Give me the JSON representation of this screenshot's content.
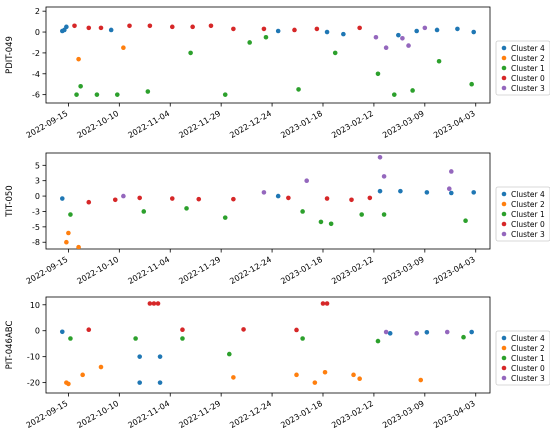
{
  "chart_data": [
    {
      "type": "scatter",
      "ylabel": "PDIT-049",
      "ylim": [
        -6.8,
        2.4
      ],
      "yticks": [
        2,
        0,
        -2,
        -4,
        -6
      ],
      "xlim": [
        "2022-09-04",
        "2023-04-10"
      ],
      "xticks": [
        "2022-09-15",
        "2022-10-10",
        "2022-11-04",
        "2022-11-29",
        "2022-12-24",
        "2023-01-18",
        "2023-02-12",
        "2023-03-09",
        "2023-04-03"
      ],
      "grid": false,
      "legend": "right",
      "series": [
        {
          "name": "Cluster 4",
          "color": "#1f77b4",
          "points": [
            [
              "2022-09-12",
              0.1
            ],
            [
              "2022-09-13",
              0.2
            ],
            [
              "2022-09-14",
              0.5
            ],
            [
              "2022-10-06",
              0.2
            ],
            [
              "2022-12-27",
              0.1
            ],
            [
              "2023-01-20",
              0.0
            ],
            [
              "2023-01-28",
              -0.2
            ],
            [
              "2023-02-24",
              -0.3
            ],
            [
              "2023-03-05",
              0.1
            ],
            [
              "2023-03-15",
              0.2
            ],
            [
              "2023-03-25",
              0.3
            ],
            [
              "2023-04-02",
              0.0
            ]
          ]
        },
        {
          "name": "Cluster 2",
          "color": "#ff7f0e",
          "points": [
            [
              "2022-09-20",
              -2.6
            ],
            [
              "2022-10-12",
              -1.5
            ]
          ]
        },
        {
          "name": "Cluster 1",
          "color": "#2ca02c",
          "points": [
            [
              "2022-09-19",
              -6.0
            ],
            [
              "2022-09-21",
              -5.2
            ],
            [
              "2022-09-29",
              -6.0
            ],
            [
              "2022-10-09",
              -6.0
            ],
            [
              "2022-10-24",
              -5.7
            ],
            [
              "2022-11-14",
              -2.0
            ],
            [
              "2022-12-01",
              -6.0
            ],
            [
              "2022-12-13",
              -1.0
            ],
            [
              "2022-12-21",
              -0.5
            ],
            [
              "2023-01-06",
              -5.5
            ],
            [
              "2023-01-24",
              -2.0
            ],
            [
              "2023-02-14",
              -4.0
            ],
            [
              "2023-02-22",
              -6.0
            ],
            [
              "2023-03-03",
              -5.6
            ],
            [
              "2023-03-16",
              -2.8
            ],
            [
              "2023-04-01",
              -5.0
            ]
          ]
        },
        {
          "name": "Cluster 0",
          "color": "#d62728",
          "points": [
            [
              "2022-09-18",
              0.6
            ],
            [
              "2022-09-25",
              0.4
            ],
            [
              "2022-10-01",
              0.4
            ],
            [
              "2022-10-15",
              0.6
            ],
            [
              "2022-10-25",
              0.6
            ],
            [
              "2022-11-05",
              0.5
            ],
            [
              "2022-11-15",
              0.5
            ],
            [
              "2022-11-24",
              0.6
            ],
            [
              "2022-12-05",
              0.3
            ],
            [
              "2022-12-20",
              0.3
            ],
            [
              "2023-01-04",
              0.2
            ],
            [
              "2023-01-15",
              0.3
            ],
            [
              "2023-02-05",
              0.4
            ]
          ]
        },
        {
          "name": "Cluster 3",
          "color": "#9467bd",
          "points": [
            [
              "2023-02-13",
              -0.5
            ],
            [
              "2023-02-18",
              -1.5
            ],
            [
              "2023-02-26",
              -0.6
            ],
            [
              "2023-03-01",
              -1.3
            ],
            [
              "2023-03-09",
              0.4
            ]
          ]
        }
      ]
    },
    {
      "type": "scatter",
      "ylabel": "TIT-050",
      "ylim": [
        -8.6,
        7.0
      ],
      "yticks": [
        5.0,
        2.5,
        0.0,
        -2.5,
        -5.0,
        -7.5
      ],
      "xlim": [
        "2022-09-04",
        "2023-04-10"
      ],
      "xticks": [
        "2022-09-15",
        "2022-10-10",
        "2022-11-04",
        "2022-11-29",
        "2022-12-24",
        "2023-01-18",
        "2023-02-12",
        "2023-03-09",
        "2023-04-03"
      ],
      "grid": false,
      "legend": "right",
      "series": [
        {
          "name": "Cluster 4",
          "color": "#1f77b4",
          "points": [
            [
              "2022-09-12",
              -0.4
            ],
            [
              "2022-12-27",
              0.0
            ],
            [
              "2023-02-15",
              0.8
            ],
            [
              "2023-02-25",
              0.8
            ],
            [
              "2023-03-10",
              0.6
            ],
            [
              "2023-03-22",
              0.5
            ],
            [
              "2023-04-02",
              0.6
            ]
          ]
        },
        {
          "name": "Cluster 2",
          "color": "#ff7f0e",
          "points": [
            [
              "2022-09-14",
              -7.5
            ],
            [
              "2022-09-15",
              -6.0
            ],
            [
              "2022-09-20",
              -8.3
            ]
          ]
        },
        {
          "name": "Cluster 1",
          "color": "#2ca02c",
          "points": [
            [
              "2022-09-16",
              -3.0
            ],
            [
              "2022-10-22",
              -2.5
            ],
            [
              "2022-11-12",
              -2.0
            ],
            [
              "2022-12-01",
              -3.5
            ],
            [
              "2023-01-08",
              -2.5
            ],
            [
              "2023-01-17",
              -4.2
            ],
            [
              "2023-01-22",
              -4.5
            ],
            [
              "2023-02-06",
              -3.0
            ],
            [
              "2023-02-17",
              -3.0
            ],
            [
              "2023-03-29",
              -4.0
            ]
          ]
        },
        {
          "name": "Cluster 0",
          "color": "#d62728",
          "points": [
            [
              "2022-09-25",
              -1.0
            ],
            [
              "2022-10-08",
              -0.6
            ],
            [
              "2022-10-20",
              -0.3
            ],
            [
              "2022-11-05",
              -0.4
            ],
            [
              "2022-11-18",
              -0.5
            ],
            [
              "2022-12-05",
              -0.5
            ],
            [
              "2023-01-01",
              -0.3
            ],
            [
              "2023-01-20",
              -0.4
            ],
            [
              "2023-02-01",
              -0.6
            ],
            [
              "2023-02-10",
              -0.3
            ]
          ]
        },
        {
          "name": "Cluster 3",
          "color": "#9467bd",
          "points": [
            [
              "2022-10-12",
              0.0
            ],
            [
              "2022-12-20",
              0.6
            ],
            [
              "2023-01-10",
              2.5
            ],
            [
              "2023-02-15",
              6.3
            ],
            [
              "2023-02-17",
              3.2
            ],
            [
              "2023-03-21",
              1.2
            ],
            [
              "2023-03-22",
              4.0
            ]
          ]
        }
      ]
    },
    {
      "type": "scatter",
      "ylabel": "PIT-046ABC",
      "ylim": [
        -24,
        13
      ],
      "yticks": [
        10,
        0,
        -10,
        -20
      ],
      "xlim": [
        "2022-09-04",
        "2023-04-10"
      ],
      "xticks": [
        "2022-09-15",
        "2022-10-10",
        "2022-11-04",
        "2022-11-29",
        "2022-12-24",
        "2023-01-18",
        "2023-02-12",
        "2023-03-09",
        "2023-04-03"
      ],
      "grid": false,
      "legend": "right",
      "series": [
        {
          "name": "Cluster 4",
          "color": "#1f77b4",
          "points": [
            [
              "2022-09-12",
              -0.4
            ],
            [
              "2022-10-20",
              -10.0
            ],
            [
              "2022-10-20",
              -20.0
            ],
            [
              "2022-10-30",
              -10.0
            ],
            [
              "2022-10-30",
              -20.0
            ],
            [
              "2023-02-20",
              -1.0
            ],
            [
              "2023-03-10",
              -0.6
            ],
            [
              "2023-04-01",
              -0.5
            ]
          ]
        },
        {
          "name": "Cluster 2",
          "color": "#ff7f0e",
          "points": [
            [
              "2022-09-14",
              -20.0
            ],
            [
              "2022-09-15",
              -20.5
            ],
            [
              "2022-09-22",
              -17.0
            ],
            [
              "2022-10-01",
              -14.0
            ],
            [
              "2022-12-05",
              -18.0
            ],
            [
              "2023-01-05",
              -17.0
            ],
            [
              "2023-01-14",
              -20.0
            ],
            [
              "2023-01-19",
              -16.0
            ],
            [
              "2023-02-02",
              -17.0
            ],
            [
              "2023-02-05",
              -18.5
            ],
            [
              "2023-03-07",
              -19.0
            ]
          ]
        },
        {
          "name": "Cluster 1",
          "color": "#2ca02c",
          "points": [
            [
              "2022-09-16",
              -3.0
            ],
            [
              "2022-10-18",
              -3.0
            ],
            [
              "2022-11-10",
              -3.0
            ],
            [
              "2022-12-03",
              -9.0
            ],
            [
              "2023-01-08",
              -3.0
            ],
            [
              "2023-02-14",
              -4.0
            ],
            [
              "2023-03-28",
              -2.5
            ]
          ]
        },
        {
          "name": "Cluster 0",
          "color": "#d62728",
          "points": [
            [
              "2022-10-25",
              10.5
            ],
            [
              "2022-10-27",
              10.5
            ],
            [
              "2022-10-29",
              10.5
            ],
            [
              "2023-01-18",
              10.5
            ],
            [
              "2023-01-20",
              10.5
            ],
            [
              "2022-09-25",
              0.4
            ],
            [
              "2022-11-10",
              0.4
            ],
            [
              "2022-12-10",
              0.5
            ],
            [
              "2023-01-05",
              0.3
            ]
          ]
        },
        {
          "name": "Cluster 3",
          "color": "#9467bd",
          "points": [
            [
              "2023-02-18",
              -0.5
            ],
            [
              "2023-03-05",
              -1.0
            ],
            [
              "2023-03-20",
              -0.5
            ]
          ]
        }
      ]
    }
  ]
}
